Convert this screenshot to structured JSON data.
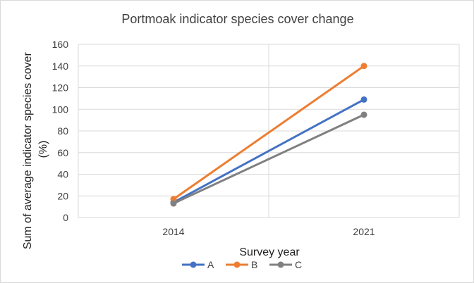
{
  "chart_data": {
    "type": "line",
    "title": "Portmoak indicator species cover change",
    "xlabel": "Survey year",
    "ylabel": "Sum of average indicator species cover (%)",
    "ylabel_lines": [
      "Sum of average indicator species cover",
      "(%)"
    ],
    "categories": [
      "2014",
      "2021"
    ],
    "ylim": [
      0,
      160
    ],
    "yticks": [
      0,
      20,
      40,
      60,
      80,
      100,
      120,
      140,
      160
    ],
    "grid": true,
    "legend_position": "bottom",
    "series": [
      {
        "name": "A",
        "color": "#4472C4",
        "values": [
          14,
          109
        ]
      },
      {
        "name": "B",
        "color": "#ED7D31",
        "values": [
          17,
          140
        ]
      },
      {
        "name": "C",
        "color": "#808080",
        "values": [
          13,
          95
        ]
      }
    ]
  }
}
